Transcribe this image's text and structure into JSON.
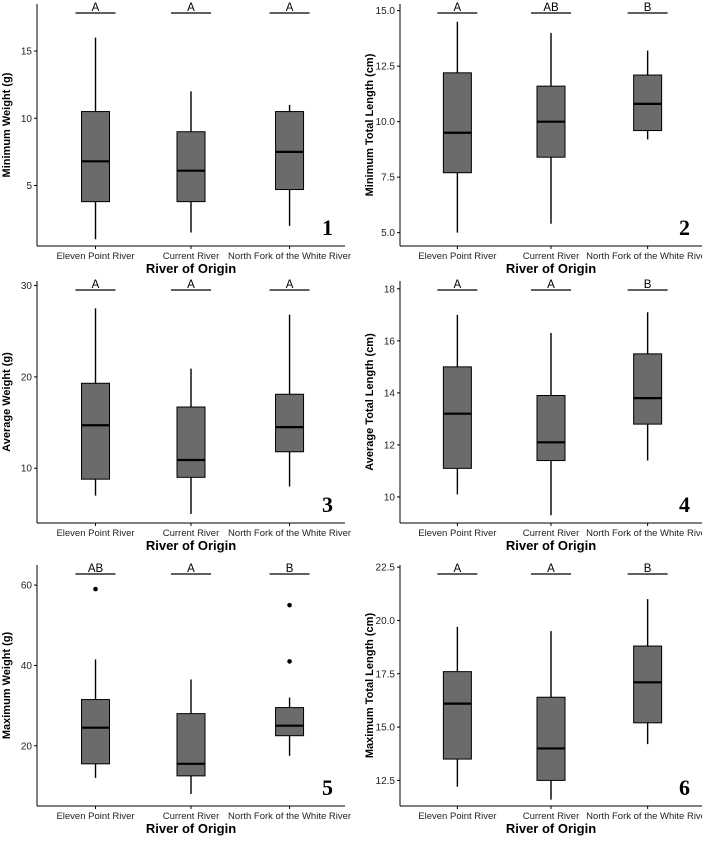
{
  "figure": {
    "description_title": "",
    "box_color": "#6b6b6b",
    "line_color": "#000000"
  },
  "chart_data": [
    {
      "type": "box",
      "panel_label": "1",
      "title": "",
      "xlabel": "River of Origin",
      "ylabel": "Minimum Weight (g)",
      "categories": [
        "Eleven Point River",
        "Current River",
        "North Fork of the White River"
      ],
      "ylim": [
        0.5,
        18.5
      ],
      "yticks": [
        5,
        10,
        15
      ],
      "ytick_labels": [
        "5",
        "10",
        "15"
      ],
      "boxes": [
        {
          "min": 1,
          "q1": 3.8,
          "median": 6.8,
          "q3": 10.5,
          "max": 16,
          "outliers": []
        },
        {
          "min": 1.5,
          "q1": 3.8,
          "median": 6.1,
          "q3": 9,
          "max": 12,
          "outliers": []
        },
        {
          "min": 2,
          "q1": 4.7,
          "median": 7.5,
          "q3": 10.5,
          "max": 11,
          "outliers": []
        }
      ],
      "letters": [
        "A",
        "A",
        "A"
      ]
    },
    {
      "type": "box",
      "panel_label": "2",
      "title": "",
      "xlabel": "River of Origin",
      "ylabel": "Minimum Total Length (cm)",
      "categories": [
        "Eleven Point River",
        "Current River",
        "North Fork of the White River"
      ],
      "ylim": [
        4.4,
        15.3
      ],
      "yticks": [
        5,
        7.5,
        10,
        12.5,
        15
      ],
      "ytick_labels": [
        "5.0",
        "7.5",
        "10.0",
        "12.5",
        "15.0"
      ],
      "boxes": [
        {
          "min": 5,
          "q1": 7.7,
          "median": 9.5,
          "q3": 12.2,
          "max": 14.5,
          "outliers": []
        },
        {
          "min": 5.4,
          "q1": 8.4,
          "median": 10,
          "q3": 11.6,
          "max": 14,
          "outliers": []
        },
        {
          "min": 9.2,
          "q1": 9.6,
          "median": 10.8,
          "q3": 12.1,
          "max": 13.2,
          "outliers": []
        }
      ],
      "letters": [
        "A",
        "AB",
        "B"
      ]
    },
    {
      "type": "box",
      "panel_label": "3",
      "title": "",
      "xlabel": "River of Origin",
      "ylabel": "Average Weight (g)",
      "categories": [
        "Eleven Point River",
        "Current River",
        "North Fork of the White River"
      ],
      "ylim": [
        4,
        30.5
      ],
      "yticks": [
        10,
        20,
        30
      ],
      "ytick_labels": [
        "10",
        "20",
        "30"
      ],
      "boxes": [
        {
          "min": 7,
          "q1": 8.8,
          "median": 14.7,
          "q3": 19.3,
          "max": 27.5,
          "outliers": []
        },
        {
          "min": 5,
          "q1": 9,
          "median": 10.9,
          "q3": 16.7,
          "max": 20.9,
          "outliers": []
        },
        {
          "min": 8,
          "q1": 11.8,
          "median": 14.5,
          "q3": 18.1,
          "max": 26.8,
          "outliers": []
        }
      ],
      "letters": [
        "A",
        "A",
        "A"
      ]
    },
    {
      "type": "box",
      "panel_label": "4",
      "title": "",
      "xlabel": "River of Origin",
      "ylabel": "Average Total Length (cm)",
      "categories": [
        "Eleven Point River",
        "Current River",
        "North Fork of the White River"
      ],
      "ylim": [
        9,
        18.3
      ],
      "yticks": [
        10,
        12,
        14,
        16,
        18
      ],
      "ytick_labels": [
        "10",
        "12",
        "14",
        "16",
        "18"
      ],
      "boxes": [
        {
          "min": 10.1,
          "q1": 11.1,
          "median": 13.2,
          "q3": 15,
          "max": 17,
          "outliers": []
        },
        {
          "min": 9.3,
          "q1": 11.4,
          "median": 12.1,
          "q3": 13.9,
          "max": 16.3,
          "outliers": []
        },
        {
          "min": 11.4,
          "q1": 12.8,
          "median": 13.8,
          "q3": 15.5,
          "max": 17.1,
          "outliers": []
        }
      ],
      "letters": [
        "A",
        "A",
        "B"
      ]
    },
    {
      "type": "box",
      "panel_label": "5",
      "title": "",
      "xlabel": "River of Origin",
      "ylabel": "Maximum Weight (g)",
      "categories": [
        "Eleven Point River",
        "Current River",
        "North Fork of the White River"
      ],
      "ylim": [
        5,
        65
      ],
      "yticks": [
        20,
        40,
        60
      ],
      "ytick_labels": [
        "20",
        "40",
        "60"
      ],
      "boxes": [
        {
          "min": 12,
          "q1": 15.5,
          "median": 24.5,
          "q3": 31.5,
          "max": 41.5,
          "outliers": [
            59
          ]
        },
        {
          "min": 8,
          "q1": 12.5,
          "median": 15.5,
          "q3": 28,
          "max": 36.5,
          "outliers": []
        },
        {
          "min": 17.5,
          "q1": 22.5,
          "median": 25,
          "q3": 29.5,
          "max": 32,
          "outliers": [
            41,
            55
          ]
        }
      ],
      "letters": [
        "AB",
        "A",
        "B"
      ]
    },
    {
      "type": "box",
      "panel_label": "6",
      "title": "",
      "xlabel": "River of Origin",
      "ylabel": "Maximum Total Length (cm)",
      "categories": [
        "Eleven Point River",
        "Current River",
        "North Fork of the White River"
      ],
      "ylim": [
        11.3,
        22.6
      ],
      "yticks": [
        12.5,
        15,
        17.5,
        20,
        22.5
      ],
      "ytick_labels": [
        "12.5",
        "15.0",
        "17.5",
        "20.0",
        "22.5"
      ],
      "boxes": [
        {
          "min": 12.2,
          "q1": 13.5,
          "median": 16.1,
          "q3": 17.6,
          "max": 19.7,
          "outliers": []
        },
        {
          "min": 11.6,
          "q1": 12.5,
          "median": 14,
          "q3": 16.4,
          "max": 19.5,
          "outliers": []
        },
        {
          "min": 14.2,
          "q1": 15.2,
          "median": 17.1,
          "q3": 18.8,
          "max": 21,
          "outliers": []
        }
      ],
      "letters": [
        "A",
        "A",
        "B"
      ]
    }
  ]
}
